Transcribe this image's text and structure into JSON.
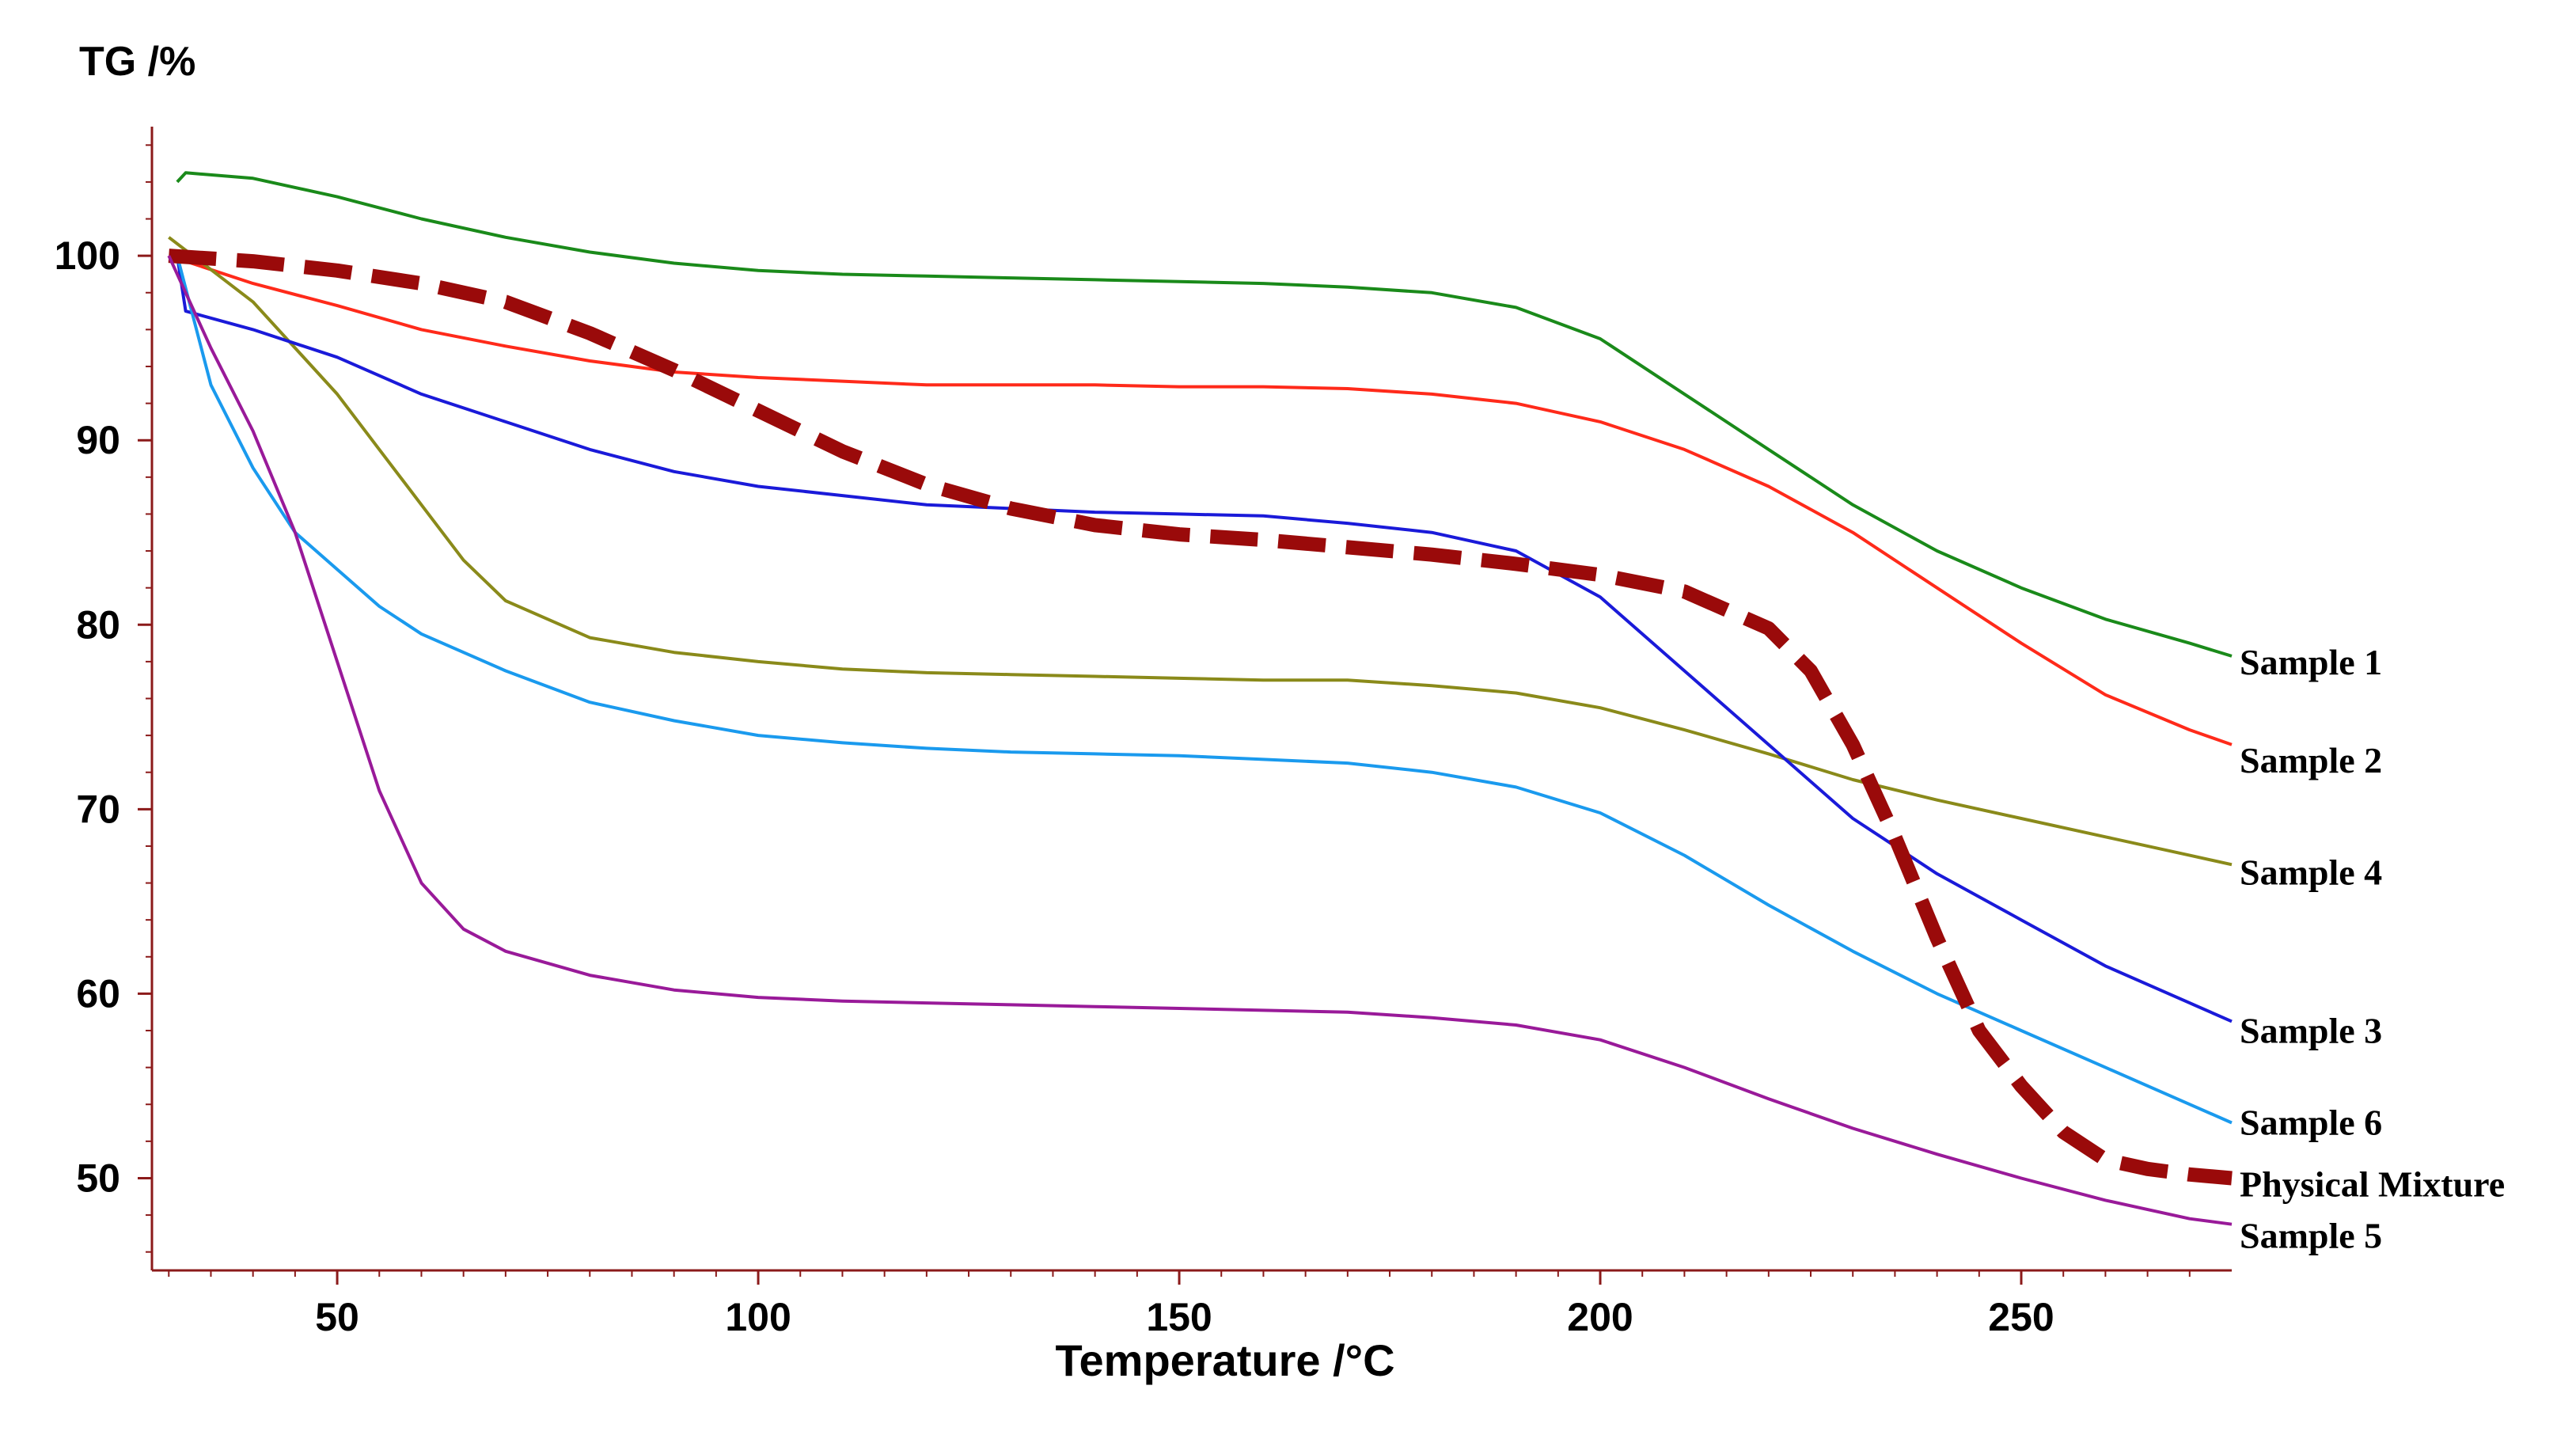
{
  "chart_data": {
    "type": "line",
    "ylabel": "TG /%",
    "xlabel": "Temperature /°C",
    "xlim": [
      28,
      275
    ],
    "ylim": [
      45,
      107
    ],
    "xticks": [
      50,
      100,
      150,
      200,
      250
    ],
    "yticks": [
      50,
      60,
      70,
      80,
      90,
      100
    ],
    "grid": false,
    "series": [
      {
        "name": "Sample 1",
        "color": "#1a8a1a",
        "dash": false,
        "points": [
          [
            31,
            104
          ],
          [
            32,
            104.5
          ],
          [
            40,
            104.2
          ],
          [
            50,
            103.2
          ],
          [
            60,
            102
          ],
          [
            70,
            101
          ],
          [
            80,
            100.2
          ],
          [
            90,
            99.6
          ],
          [
            100,
            99.2
          ],
          [
            110,
            99
          ],
          [
            120,
            98.9
          ],
          [
            130,
            98.8
          ],
          [
            140,
            98.7
          ],
          [
            150,
            98.6
          ],
          [
            160,
            98.5
          ],
          [
            170,
            98.3
          ],
          [
            180,
            98
          ],
          [
            190,
            97.2
          ],
          [
            200,
            95.5
          ],
          [
            210,
            92.5
          ],
          [
            220,
            89.5
          ],
          [
            230,
            86.5
          ],
          [
            240,
            84
          ],
          [
            250,
            82
          ],
          [
            260,
            80.3
          ],
          [
            270,
            79
          ],
          [
            275,
            78.3
          ]
        ]
      },
      {
        "name": "Sample 2",
        "color": "#ff2a1a",
        "dash": false,
        "points": [
          [
            30,
            100
          ],
          [
            40,
            98.5
          ],
          [
            50,
            97.3
          ],
          [
            60,
            96
          ],
          [
            70,
            95.1
          ],
          [
            80,
            94.3
          ],
          [
            90,
            93.7
          ],
          [
            100,
            93.4
          ],
          [
            110,
            93.2
          ],
          [
            120,
            93
          ],
          [
            130,
            93
          ],
          [
            140,
            93
          ],
          [
            150,
            92.9
          ],
          [
            160,
            92.9
          ],
          [
            170,
            92.8
          ],
          [
            180,
            92.5
          ],
          [
            190,
            92
          ],
          [
            200,
            91
          ],
          [
            210,
            89.5
          ],
          [
            220,
            87.5
          ],
          [
            230,
            85
          ],
          [
            240,
            82
          ],
          [
            250,
            79
          ],
          [
            260,
            76.2
          ],
          [
            270,
            74.3
          ],
          [
            275,
            73.5
          ]
        ]
      },
      {
        "name": "Sample 4",
        "color": "#8a8a1a",
        "dash": false,
        "points": [
          [
            30,
            101
          ],
          [
            40,
            97.5
          ],
          [
            50,
            92.5
          ],
          [
            55,
            89.5
          ],
          [
            60,
            86.5
          ],
          [
            65,
            83.5
          ],
          [
            70,
            81.3
          ],
          [
            80,
            79.3
          ],
          [
            90,
            78.5
          ],
          [
            100,
            78
          ],
          [
            110,
            77.6
          ],
          [
            120,
            77.4
          ],
          [
            130,
            77.3
          ],
          [
            140,
            77.2
          ],
          [
            150,
            77.1
          ],
          [
            160,
            77
          ],
          [
            170,
            77
          ],
          [
            180,
            76.7
          ],
          [
            190,
            76.3
          ],
          [
            200,
            75.5
          ],
          [
            210,
            74.3
          ],
          [
            220,
            73
          ],
          [
            230,
            71.6
          ],
          [
            240,
            70.5
          ],
          [
            250,
            69.5
          ],
          [
            260,
            68.5
          ],
          [
            270,
            67.5
          ],
          [
            275,
            67
          ]
        ]
      },
      {
        "name": "Sample 3",
        "color": "#1a1ad9",
        "dash": false,
        "points": [
          [
            31,
            100
          ],
          [
            32,
            97
          ],
          [
            40,
            96
          ],
          [
            50,
            94.5
          ],
          [
            60,
            92.5
          ],
          [
            70,
            91
          ],
          [
            80,
            89.5
          ],
          [
            90,
            88.3
          ],
          [
            100,
            87.5
          ],
          [
            110,
            87
          ],
          [
            120,
            86.5
          ],
          [
            130,
            86.3
          ],
          [
            140,
            86.1
          ],
          [
            150,
            86
          ],
          [
            160,
            85.9
          ],
          [
            170,
            85.5
          ],
          [
            180,
            85
          ],
          [
            190,
            84
          ],
          [
            200,
            81.5
          ],
          [
            210,
            77.5
          ],
          [
            220,
            73.5
          ],
          [
            230,
            69.5
          ],
          [
            240,
            66.5
          ],
          [
            250,
            64
          ],
          [
            260,
            61.5
          ],
          [
            270,
            59.5
          ],
          [
            275,
            58.5
          ]
        ]
      },
      {
        "name": "Sample 6",
        "color": "#1a9aee",
        "dash": false,
        "points": [
          [
            31,
            100
          ],
          [
            35,
            93
          ],
          [
            40,
            88.5
          ],
          [
            45,
            85
          ],
          [
            50,
            83
          ],
          [
            55,
            81
          ],
          [
            60,
            79.5
          ],
          [
            70,
            77.5
          ],
          [
            80,
            75.8
          ],
          [
            90,
            74.8
          ],
          [
            100,
            74
          ],
          [
            110,
            73.6
          ],
          [
            120,
            73.3
          ],
          [
            130,
            73.1
          ],
          [
            140,
            73
          ],
          [
            150,
            72.9
          ],
          [
            160,
            72.7
          ],
          [
            170,
            72.5
          ],
          [
            180,
            72
          ],
          [
            190,
            71.2
          ],
          [
            200,
            69.8
          ],
          [
            210,
            67.5
          ],
          [
            220,
            64.8
          ],
          [
            230,
            62.3
          ],
          [
            240,
            60
          ],
          [
            250,
            58
          ],
          [
            260,
            56
          ],
          [
            270,
            54
          ],
          [
            275,
            53
          ]
        ]
      },
      {
        "name": "Physical Mixture",
        "color": "#9a0a0a",
        "dash": true,
        "points": [
          [
            30,
            100
          ],
          [
            40,
            99.7
          ],
          [
            50,
            99.2
          ],
          [
            60,
            98.5
          ],
          [
            70,
            97.5
          ],
          [
            80,
            95.8
          ],
          [
            90,
            93.8
          ],
          [
            100,
            91.6
          ],
          [
            110,
            89.4
          ],
          [
            120,
            87.6
          ],
          [
            130,
            86.3
          ],
          [
            140,
            85.4
          ],
          [
            150,
            84.9
          ],
          [
            160,
            84.6
          ],
          [
            170,
            84.2
          ],
          [
            180,
            83.8
          ],
          [
            190,
            83.3
          ],
          [
            200,
            82.7
          ],
          [
            210,
            81.8
          ],
          [
            220,
            79.8
          ],
          [
            225,
            77.5
          ],
          [
            230,
            73.5
          ],
          [
            235,
            68.5
          ],
          [
            240,
            63
          ],
          [
            245,
            58
          ],
          [
            250,
            55
          ],
          [
            255,
            52.5
          ],
          [
            260,
            51
          ],
          [
            265,
            50.5
          ],
          [
            270,
            50.2
          ],
          [
            275,
            50
          ]
        ]
      },
      {
        "name": "Sample 5",
        "color": "#991a99",
        "dash": false,
        "points": [
          [
            30,
            100
          ],
          [
            32,
            98
          ],
          [
            35,
            95
          ],
          [
            40,
            90.5
          ],
          [
            45,
            85
          ],
          [
            50,
            78
          ],
          [
            55,
            71
          ],
          [
            60,
            66
          ],
          [
            65,
            63.5
          ],
          [
            70,
            62.3
          ],
          [
            80,
            61
          ],
          [
            90,
            60.2
          ],
          [
            100,
            59.8
          ],
          [
            110,
            59.6
          ],
          [
            120,
            59.5
          ],
          [
            130,
            59.4
          ],
          [
            140,
            59.3
          ],
          [
            150,
            59.2
          ],
          [
            160,
            59.1
          ],
          [
            170,
            59
          ],
          [
            180,
            58.7
          ],
          [
            190,
            58.3
          ],
          [
            200,
            57.5
          ],
          [
            210,
            56
          ],
          [
            220,
            54.3
          ],
          [
            230,
            52.7
          ],
          [
            240,
            51.3
          ],
          [
            250,
            50
          ],
          [
            260,
            48.8
          ],
          [
            270,
            47.8
          ],
          [
            275,
            47.5
          ]
        ]
      }
    ]
  }
}
